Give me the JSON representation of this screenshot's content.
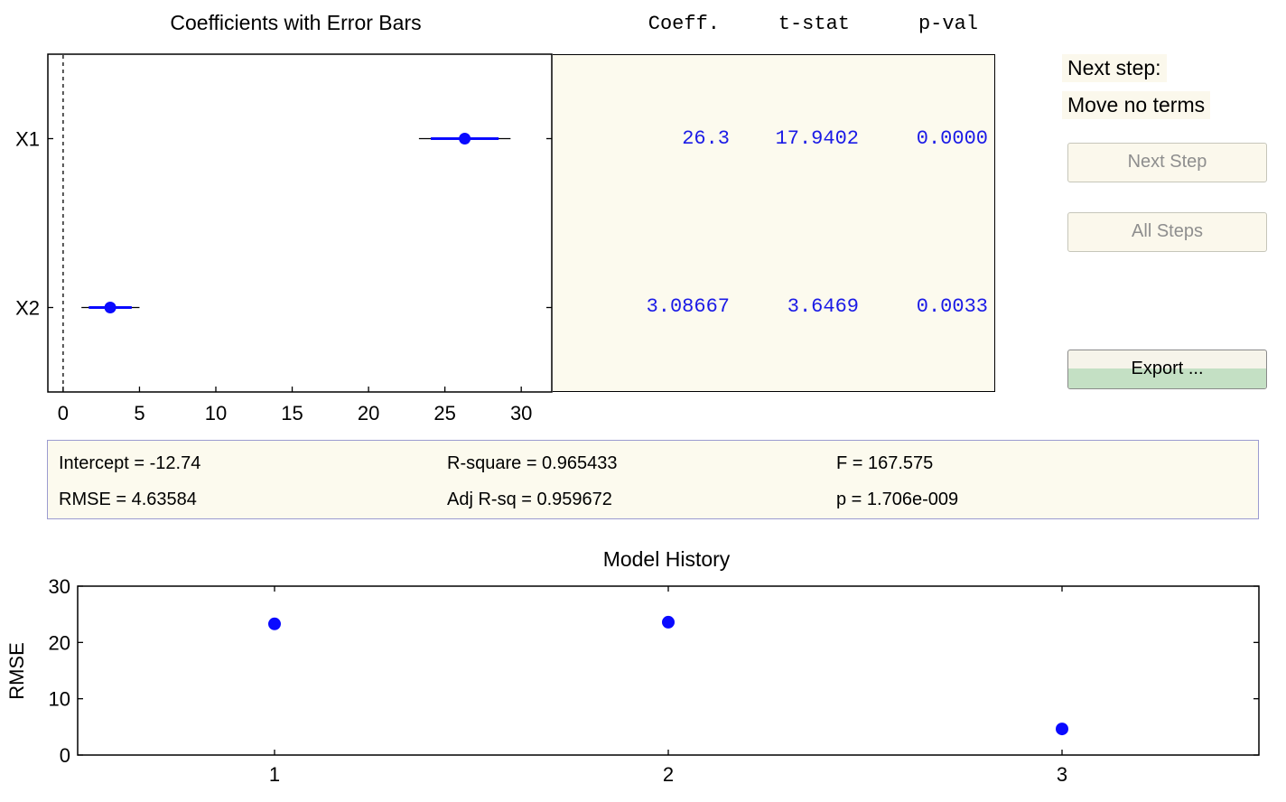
{
  "coefficients_plot": {
    "title": "Coefficients with Error Bars",
    "x_ticks": [
      "0",
      "5",
      "10",
      "15",
      "20",
      "25",
      "30"
    ],
    "terms": [
      "X1",
      "X2"
    ]
  },
  "table": {
    "headers": [
      "Coeff.",
      "t-stat",
      "p-val"
    ],
    "rows": [
      {
        "term": "X1",
        "coeff": "26.3",
        "tstat": "17.9402",
        "pval": "0.0000"
      },
      {
        "term": "X2",
        "coeff": "3.08667",
        "tstat": "3.6469",
        "pval": "0.0033"
      }
    ]
  },
  "side": {
    "next_step_label": "Next step:",
    "next_step_value": "Move no terms",
    "next_step_button": "Next Step",
    "all_steps_button": "All Steps",
    "export_button": "Export ..."
  },
  "stats": {
    "intercept": "Intercept = -12.74",
    "rmse": "RMSE = 4.63584",
    "r_square": "R-square = 0.965433",
    "adj_r_sq": "Adj R-sq = 0.959672",
    "f": "F = 167.575",
    "p": "p = 1.706e-009"
  },
  "history": {
    "title": "Model History",
    "ylabel": "RMSE",
    "y_ticks": [
      "0",
      "10",
      "20",
      "30"
    ],
    "x_ticks": [
      "1",
      "2",
      "3"
    ]
  },
  "colors": {
    "marker": "#0a0aff",
    "panel_bg": "#fcfaee",
    "button_disabled_text": "#8e8e8e",
    "export_bar": "#c4e0c4"
  },
  "chart_data": [
    {
      "type": "scatter",
      "title": "Coefficients with Error Bars",
      "categories": [
        "X1",
        "X2"
      ],
      "values": [
        26.3,
        3.08667
      ],
      "intervals": [
        [
          23.3,
          29.3
        ],
        [
          1.2,
          5.0
        ]
      ],
      "xlim": [
        -1,
        32
      ],
      "zero_line": true
    },
    {
      "type": "scatter",
      "title": "Model History",
      "ylabel": "RMSE",
      "x": [
        1,
        2,
        3
      ],
      "y": [
        23.3,
        23.6,
        4.63584
      ],
      "xlim": [
        0.5,
        3.5
      ],
      "ylim": [
        0,
        30
      ]
    }
  ]
}
